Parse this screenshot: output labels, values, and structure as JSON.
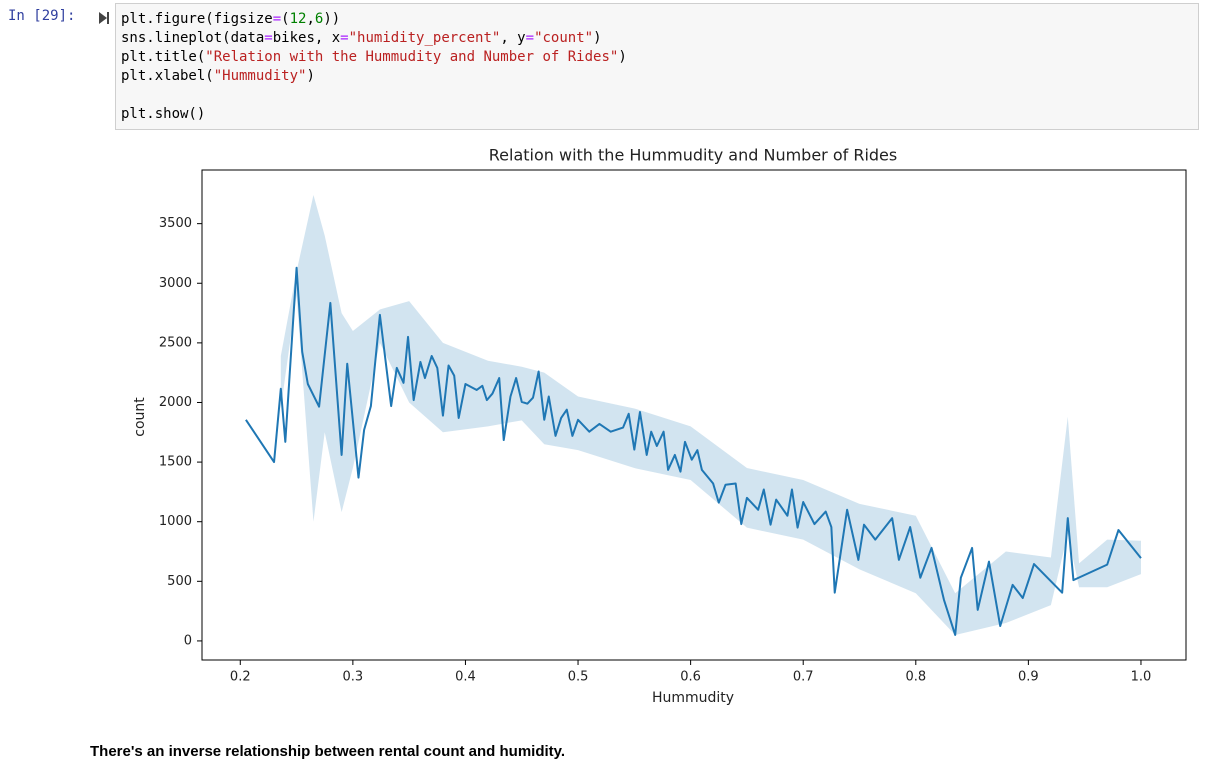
{
  "notebook": {
    "prompt": "In [29]:",
    "code_lines": [
      [
        "plt.figure(figsize",
        "=",
        "(",
        "12",
        ",",
        "6",
        "))"
      ],
      [
        "sns.lineplot(data",
        "=",
        "bikes, x",
        "=",
        "\"humidity_percent\"",
        ", y",
        "=",
        "\"count\"",
        ")"
      ],
      [
        "plt.title(",
        "\"Relation with the Hummudity and Number of Rides\"",
        ")"
      ],
      [
        "plt.xlabel(",
        "\"Hummudity\"",
        ")"
      ],
      [],
      [
        "plt.show()"
      ]
    ],
    "markdown": "There's an inverse relationship between rental count and humidity."
  },
  "chart_data": {
    "type": "line",
    "title": "Relation with the Hummudity and Number of Rides",
    "xlabel": "Hummudity",
    "ylabel": "count",
    "color": "#1f77b4",
    "xlim": [
      0.166,
      1.04
    ],
    "ylim": [
      -160,
      3950
    ],
    "xticks": [
      0.2,
      0.3,
      0.4,
      0.5,
      0.6,
      0.7,
      0.8,
      0.9,
      {
        "value": 1.0,
        "label": "1.0"
      }
    ],
    "yticks": [
      0,
      500,
      1000,
      1500,
      2000,
      2500,
      3000,
      3500
    ],
    "x": [
      0.205,
      0.23,
      0.236,
      0.24,
      0.25,
      0.255,
      0.26,
      0.27,
      0.28,
      0.29,
      0.295,
      0.305,
      0.31,
      0.316,
      0.324,
      0.334,
      0.339,
      0.345,
      0.349,
      0.354,
      0.36,
      0.364,
      0.37,
      0.375,
      0.38,
      0.385,
      0.39,
      0.394,
      0.4,
      0.41,
      0.415,
      0.419,
      0.424,
      0.43,
      0.434,
      0.44,
      0.445,
      0.45,
      0.455,
      0.46,
      0.465,
      0.47,
      0.474,
      0.48,
      0.485,
      0.49,
      0.495,
      0.5,
      0.51,
      0.519,
      0.529,
      0.54,
      0.545,
      0.55,
      0.555,
      0.561,
      0.565,
      0.57,
      0.576,
      0.58,
      0.586,
      0.591,
      0.595,
      0.601,
      0.606,
      0.61,
      0.62,
      0.625,
      0.631,
      0.64,
      0.645,
      0.65,
      0.66,
      0.665,
      0.671,
      0.676,
      0.686,
      0.69,
      0.695,
      0.7,
      0.71,
      0.72,
      0.725,
      0.728,
      0.739,
      0.749,
      0.754,
      0.764,
      0.779,
      0.785,
      0.795,
      0.804,
      0.814,
      0.825,
      0.835,
      0.84,
      0.85,
      0.855,
      0.865,
      0.875,
      0.886,
      0.895,
      0.905,
      0.93,
      0.935,
      0.94,
      0.97,
      0.98,
      1.0
    ],
    "values": [
      1855,
      1500,
      2115,
      1670,
      3130,
      2425,
      2155,
      1965,
      2835,
      1560,
      2325,
      1370,
      1770,
      1970,
      2735,
      1970,
      2290,
      2165,
      2550,
      2020,
      2340,
      2205,
      2390,
      2290,
      1890,
      2310,
      2225,
      1870,
      2155,
      2105,
      2140,
      2020,
      2075,
      2205,
      1685,
      2050,
      2205,
      2005,
      1990,
      2040,
      2260,
      1855,
      2050,
      1720,
      1870,
      1940,
      1720,
      1855,
      1755,
      1820,
      1755,
      1790,
      1905,
      1605,
      1920,
      1560,
      1755,
      1635,
      1755,
      1435,
      1560,
      1420,
      1670,
      1520,
      1600,
      1435,
      1320,
      1160,
      1310,
      1320,
      980,
      1200,
      1100,
      1270,
      975,
      1185,
      1050,
      1270,
      950,
      1165,
      980,
      1085,
      955,
      405,
      1100,
      680,
      975,
      850,
      1030,
      680,
      955,
      530,
      780,
      345,
      50,
      530,
      780,
      260,
      665,
      125,
      470,
      360,
      645,
      405,
      1030,
      510,
      640,
      930,
      695
    ],
    "ci_band": {
      "opacity": 0.2,
      "x": [
        0.236,
        0.25,
        0.265,
        0.275,
        0.29,
        0.3,
        0.324,
        0.35,
        0.38,
        0.42,
        0.45,
        0.47,
        0.5,
        0.55,
        0.6,
        0.65,
        0.7,
        0.75,
        0.8,
        0.835,
        0.88,
        0.92,
        0.935,
        0.945,
        0.97,
        1.0
      ],
      "lower": [
        1950,
        2900,
        1000,
        1750,
        1080,
        1450,
        2500,
        2000,
        1750,
        1800,
        1850,
        1650,
        1600,
        1450,
        1350,
        950,
        850,
        600,
        400,
        50,
        150,
        300,
        900,
        450,
        450,
        560
      ],
      "upper": [
        2390,
        3100,
        3740,
        3400,
        2750,
        2600,
        2780,
        2850,
        2500,
        2350,
        2300,
        2250,
        2050,
        1950,
        1800,
        1450,
        1350,
        1150,
        1050,
        400,
        750,
        700,
        1880,
        650,
        850,
        840
      ]
    }
  }
}
